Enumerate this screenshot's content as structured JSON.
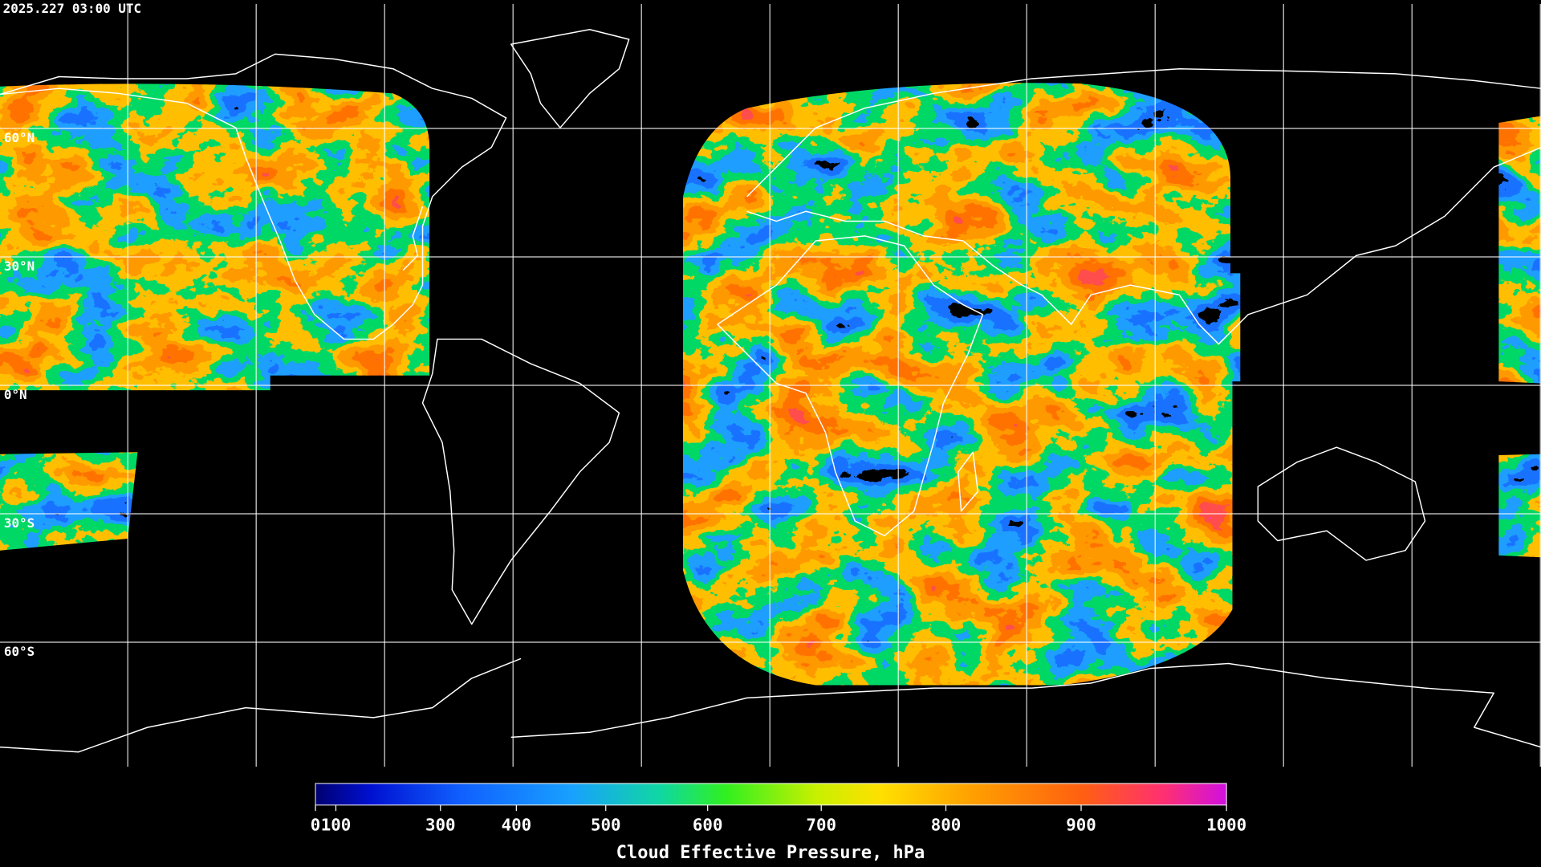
{
  "header": {
    "timestamp": "2025.227 03:00 UTC"
  },
  "map": {
    "lat_labels": [
      "60°N",
      "30°N",
      "0°N",
      "30°S",
      "60°S"
    ]
  },
  "colorbar": {
    "title": "Cloud Effective Pressure, hPa",
    "ticks": [
      0,
      100,
      300,
      400,
      500,
      600,
      700,
      800,
      900,
      1000
    ]
  }
}
